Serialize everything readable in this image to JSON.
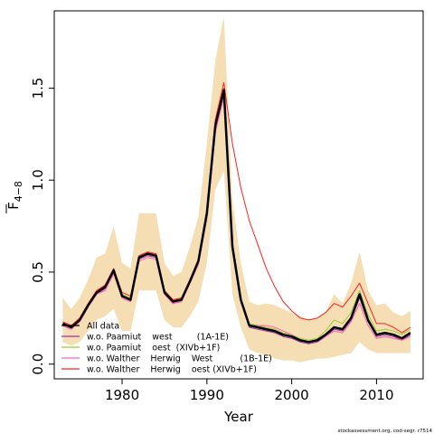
{
  "chart_data": {
    "type": "line",
    "xlabel": "Year",
    "ylabel": "F",
    "ylabel_sub": "4−8",
    "xlim": [
      1972,
      2015.5
    ],
    "ylim": [
      -0.08,
      1.92
    ],
    "x_ticks": [
      1980,
      1990,
      2000,
      2010
    ],
    "y_ticks": [
      0.0,
      0.5,
      1.0,
      1.5
    ],
    "y_tick_labels": [
      "0.0",
      "0.5",
      "1.0",
      "1.5"
    ],
    "legend_position": "bottom-left",
    "years": [
      1973,
      1974,
      1975,
      1976,
      1977,
      1978,
      1979,
      1980,
      1981,
      1982,
      1983,
      1984,
      1985,
      1986,
      1987,
      1988,
      1989,
      1990,
      1991,
      1992,
      1993,
      1994,
      1995,
      1996,
      1997,
      1998,
      1999,
      2000,
      2001,
      2002,
      2003,
      2004,
      2005,
      2006,
      2007,
      2008,
      2009,
      2010,
      2011,
      2012,
      2013,
      2014
    ],
    "band": {
      "color": "#f5deb3",
      "lower": [
        0.12,
        0.1,
        0.12,
        0.18,
        0.24,
        0.26,
        0.3,
        0.18,
        0.18,
        0.4,
        0.4,
        0.4,
        0.24,
        0.2,
        0.2,
        0.26,
        0.34,
        0.55,
        0.95,
        1.05,
        0.38,
        0.2,
        0.08,
        0.06,
        0.05,
        0.03,
        0.02,
        0.02,
        0.01,
        0.02,
        0.03,
        0.03,
        0.04,
        0.05,
        0.06,
        0.12,
        0.08,
        0.06,
        0.06,
        0.06,
        0.06,
        0.06
      ],
      "upper": [
        0.36,
        0.3,
        0.36,
        0.46,
        0.58,
        0.6,
        0.75,
        0.55,
        0.52,
        0.82,
        0.82,
        0.82,
        0.55,
        0.48,
        0.5,
        0.64,
        0.8,
        1.2,
        1.65,
        1.89,
        0.9,
        0.55,
        0.34,
        0.32,
        0.33,
        0.32,
        0.3,
        0.28,
        0.26,
        0.24,
        0.25,
        0.28,
        0.38,
        0.33,
        0.44,
        0.61,
        0.4,
        0.32,
        0.33,
        0.28,
        0.26,
        0.29
      ]
    },
    "series": [
      {
        "name": "All data",
        "color": "#000000",
        "width": 2.5,
        "values": [
          0.22,
          0.2,
          0.24,
          0.32,
          0.39,
          0.42,
          0.51,
          0.37,
          0.35,
          0.58,
          0.6,
          0.59,
          0.39,
          0.34,
          0.35,
          0.45,
          0.56,
          0.82,
          1.3,
          1.49,
          0.64,
          0.35,
          0.21,
          0.2,
          0.19,
          0.18,
          0.16,
          0.15,
          0.13,
          0.12,
          0.13,
          0.16,
          0.2,
          0.19,
          0.25,
          0.38,
          0.24,
          0.16,
          0.17,
          0.16,
          0.14,
          0.17
        ]
      },
      {
        "name": "w.o. Paamiut    west         (1A-1E)",
        "color": "#9b30b0",
        "width": 1,
        "values": [
          0.21,
          0.19,
          0.23,
          0.31,
          0.38,
          0.41,
          0.5,
          0.36,
          0.34,
          0.57,
          0.59,
          0.58,
          0.38,
          0.33,
          0.34,
          0.44,
          0.55,
          0.8,
          1.27,
          1.46,
          0.62,
          0.34,
          0.2,
          0.19,
          0.18,
          0.17,
          0.15,
          0.14,
          0.12,
          0.11,
          0.12,
          0.15,
          0.19,
          0.18,
          0.24,
          0.36,
          0.23,
          0.15,
          0.16,
          0.15,
          0.13,
          0.16
        ]
      },
      {
        "name": "w.o. Paamiut    oest  (XIVb+1F)",
        "color": "#9acd32",
        "width": 1,
        "values": [
          0.22,
          0.2,
          0.24,
          0.32,
          0.39,
          0.42,
          0.52,
          0.38,
          0.36,
          0.58,
          0.6,
          0.6,
          0.4,
          0.35,
          0.36,
          0.46,
          0.57,
          0.83,
          1.31,
          1.5,
          0.65,
          0.36,
          0.22,
          0.21,
          0.2,
          0.19,
          0.17,
          0.16,
          0.14,
          0.13,
          0.14,
          0.18,
          0.24,
          0.22,
          0.28,
          0.4,
          0.27,
          0.18,
          0.19,
          0.18,
          0.16,
          0.19
        ]
      },
      {
        "name": "w.o. Walther    Herwig    West          (1B-1E)",
        "color": "#ff5fbf",
        "width": 1,
        "values": [
          0.21,
          0.19,
          0.23,
          0.31,
          0.38,
          0.4,
          0.49,
          0.36,
          0.34,
          0.56,
          0.58,
          0.57,
          0.38,
          0.33,
          0.34,
          0.44,
          0.54,
          0.79,
          1.26,
          1.45,
          0.63,
          0.35,
          0.21,
          0.21,
          0.21,
          0.2,
          0.18,
          0.16,
          0.13,
          0.12,
          0.13,
          0.15,
          0.18,
          0.17,
          0.23,
          0.33,
          0.21,
          0.14,
          0.15,
          0.14,
          0.13,
          0.15
        ]
      },
      {
        "name": "w.o. Walther    Herwig    oest (XIVb+1F)",
        "color": "#ff2020",
        "width": 1,
        "values": [
          0.23,
          0.21,
          0.25,
          0.33,
          0.4,
          0.43,
          0.52,
          0.39,
          0.37,
          0.59,
          0.61,
          0.6,
          0.4,
          0.35,
          0.36,
          0.46,
          0.57,
          0.84,
          1.33,
          1.53,
          1.2,
          0.96,
          0.78,
          0.65,
          0.52,
          0.42,
          0.34,
          0.29,
          0.25,
          0.24,
          0.25,
          0.28,
          0.33,
          0.31,
          0.37,
          0.44,
          0.33,
          0.22,
          0.22,
          0.2,
          0.17,
          0.2
        ]
      }
    ]
  },
  "footer_note": "stockassessment.org, cod-segr. r7514"
}
